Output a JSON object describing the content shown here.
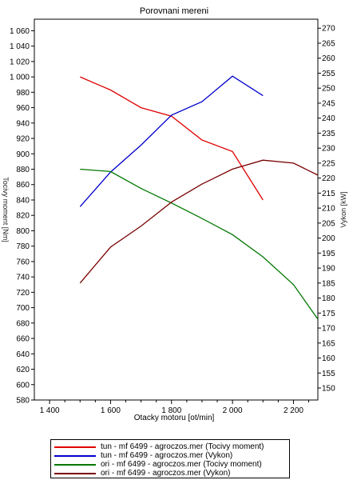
{
  "chart_data": {
    "type": "line",
    "title": "Porovnani mereni",
    "xlabel": "Otacky motoru [ot/min]",
    "ylabel_left": "Tocivy moment [Nm]",
    "ylabel_right": "Vykon [kW]",
    "xlim": [
      1350,
      2280
    ],
    "ylim_left": [
      580,
      1075
    ],
    "ylim_right": [
      146,
      273
    ],
    "x_ticks": [
      1400,
      1600,
      1800,
      2000,
      2200
    ],
    "x_tick_labels": [
      "1 400",
      "1 600",
      "1 800",
      "2 000",
      "2 200"
    ],
    "y_left_ticks": [
      580,
      600,
      620,
      640,
      660,
      680,
      700,
      720,
      740,
      760,
      780,
      800,
      820,
      840,
      860,
      880,
      900,
      920,
      940,
      960,
      980,
      1000,
      1020,
      1040,
      1060
    ],
    "y_left_tick_labels": [
      "580",
      "600",
      "620",
      "640",
      "660",
      "680",
      "700",
      "720",
      "740",
      "760",
      "780",
      "800",
      "820",
      "840",
      "860",
      "880",
      "900",
      "920",
      "940",
      "960",
      "980",
      "1 000",
      "1 020",
      "1 040",
      "1 060"
    ],
    "y_right_ticks": [
      150,
      155,
      160,
      165,
      170,
      175,
      180,
      185,
      190,
      195,
      200,
      205,
      210,
      215,
      220,
      225,
      230,
      235,
      240,
      245,
      250,
      255,
      260,
      265,
      270
    ],
    "grid": false,
    "legend_placement": "bottom",
    "series": [
      {
        "name": "tun - mf 6499 - agroczos.mer  (Tocivy moment)",
        "axis": "left",
        "color": "#e00000",
        "x": [
          1500,
          1600,
          1700,
          1800,
          1900,
          2000,
          2100
        ],
        "y": [
          1000,
          983,
          960,
          949,
          918,
          903,
          840
        ]
      },
      {
        "name": "tun - mf 6499 - agroczos.mer  (Vykon)",
        "axis": "right",
        "color": "#0000cc",
        "x": [
          1500,
          1600,
          1700,
          1800,
          1900,
          2000,
          2100
        ],
        "y": [
          210.5,
          222,
          231,
          241,
          245.5,
          254,
          247.5
        ]
      },
      {
        "name": "ori - mf 6499 - agroczos.mer  (Tocivy moment)",
        "axis": "left",
        "color": "#007700",
        "x": [
          1500,
          1600,
          1700,
          1800,
          1900,
          2000,
          2100,
          2200,
          2280
        ],
        "y": [
          880,
          877,
          855,
          836,
          816,
          795,
          766,
          730,
          685
        ]
      },
      {
        "name": "ori - mf 6499 - agroczos.mer  (Vykon)",
        "axis": "right",
        "color": "#7a0000",
        "x": [
          1500,
          1600,
          1700,
          1800,
          1900,
          2000,
          2100,
          2200,
          2280
        ],
        "y": [
          185,
          197,
          204,
          212,
          218,
          223,
          226,
          225,
          221
        ]
      }
    ]
  }
}
